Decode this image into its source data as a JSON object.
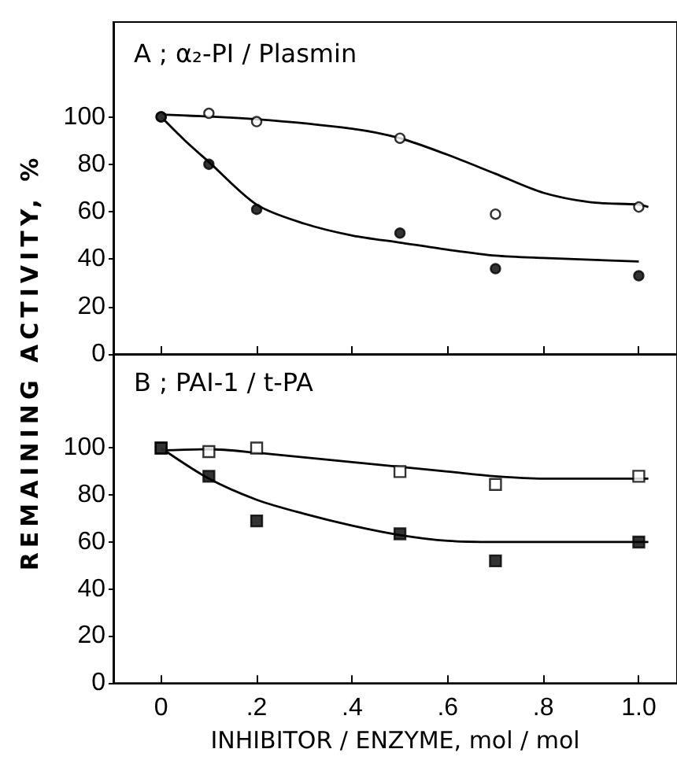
{
  "chart_data": [
    {
      "type": "scatter",
      "title": "A ; α₂-PI / Plasmin",
      "ylabel": "REMAINING ACTIVITY, %",
      "tick_labels": "y",
      "xlim": [
        -0.1,
        1.08
      ],
      "ylim": [
        0,
        140
      ],
      "xticks": [
        {
          "value": 0,
          "label": null
        },
        {
          "value": 0.2,
          "label": null
        },
        {
          "value": 0.4,
          "label": null
        },
        {
          "value": 0.6,
          "label": null
        },
        {
          "value": 0.8,
          "label": null
        },
        {
          "value": 1,
          "label": null
        }
      ],
      "yticks": [
        0,
        20,
        40,
        60,
        80,
        100
      ],
      "series": [
        {
          "color": "#ffffff",
          "marker": "circle",
          "x": [
            0,
            0.1,
            0.2,
            0.5,
            0.7,
            1.0
          ],
          "values": [
            100,
            101.5,
            98,
            91,
            59,
            62
          ]
        },
        {
          "color": "#000000",
          "marker": "circle",
          "x": [
            0,
            0.1,
            0.2,
            0.5,
            0.7,
            1.0
          ],
          "values": [
            100,
            80,
            61,
            51,
            36,
            33
          ]
        },
        {
          "type": "line",
          "marker": "none",
          "color": "#000000",
          "x": [
            0,
            0.2,
            0.4,
            0.5,
            0.6,
            0.7,
            0.8,
            0.9,
            1.0,
            1.02
          ],
          "values": [
            101,
            99,
            95,
            91,
            84,
            76,
            68,
            64,
            63,
            62
          ]
        },
        {
          "type": "line",
          "marker": "none",
          "color": "#000000",
          "x": [
            0,
            0.05,
            0.1,
            0.2,
            0.3,
            0.4,
            0.5,
            0.6,
            0.7,
            0.8,
            1.0
          ],
          "values": [
            100,
            90,
            81,
            63,
            55,
            50,
            47,
            44,
            41.5,
            40.5,
            39
          ]
        }
      ]
    },
    {
      "type": "scatter",
      "title": "B ; PAI-1 / t-PA",
      "xlabel": "INHIBITOR / ENZYME, mol / mol",
      "xlim": [
        -0.1,
        1.08
      ],
      "ylim": [
        0,
        140
      ],
      "xticks": [
        {
          "value": 0,
          "label": "0"
        },
        {
          "value": 0.2,
          "label": ".2"
        },
        {
          "value": 0.4,
          "label": ".4"
        },
        {
          "value": 0.6,
          "label": ".6"
        },
        {
          "value": 0.8,
          "label": ".8"
        },
        {
          "value": 1,
          "label": "1.0"
        }
      ],
      "yticks": [
        0,
        20,
        40,
        60,
        80,
        100
      ],
      "series": [
        {
          "color": "#ffffff",
          "marker": "square",
          "x": [
            0,
            0.1,
            0.2,
            0.5,
            0.7,
            1.0
          ],
          "values": [
            100,
            98.5,
            100,
            90,
            84.5,
            88
          ]
        },
        {
          "color": "#000000",
          "marker": "square",
          "x": [
            0,
            0.1,
            0.2,
            0.5,
            0.7,
            1.0
          ],
          "values": [
            100,
            88,
            69,
            63.5,
            52,
            60
          ]
        },
        {
          "type": "line",
          "marker": "none",
          "color": "#000000",
          "x": [
            0,
            0.1,
            0.2,
            0.4,
            0.6,
            0.7,
            0.8,
            1.0,
            1.02
          ],
          "values": [
            99,
            99.5,
            98,
            94,
            90,
            88,
            87,
            87,
            87
          ]
        },
        {
          "type": "line",
          "marker": "none",
          "color": "#000000",
          "x": [
            0,
            0.1,
            0.2,
            0.3,
            0.4,
            0.5,
            0.6,
            0.7,
            1.0,
            1.02
          ],
          "values": [
            100,
            87,
            78,
            72,
            67,
            63,
            60.5,
            60,
            60,
            60
          ]
        }
      ]
    }
  ]
}
